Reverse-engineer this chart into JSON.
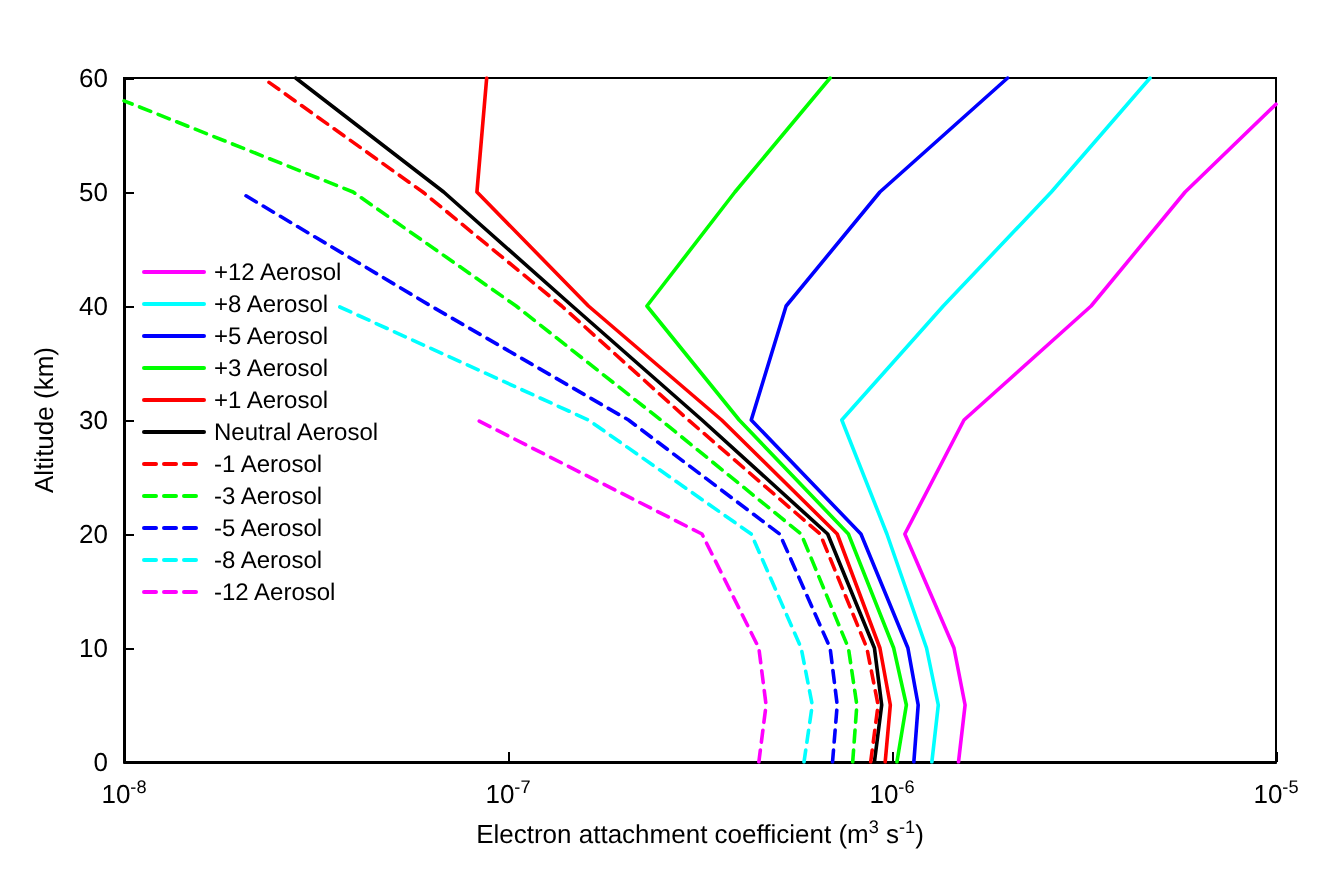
{
  "chart_data": {
    "type": "line",
    "xlabel": "Electron attachment coefficient (m$^{3}$ s$^{-1}$)",
    "ylabel": "Altitude (km)",
    "log": "x",
    "xlim": [
      1e-08,
      1e-05
    ],
    "xticks": [
      {
        "value": 1e-08,
        "label": "10$^{-8}$"
      },
      {
        "value": 1e-07,
        "label": "10$^{-7}$"
      },
      {
        "value": 1e-06,
        "label": "10$^{-6}$"
      },
      {
        "value": 1e-05,
        "label": "10$^{-5}$"
      }
    ],
    "ylim": [
      0,
      60
    ],
    "yticks": [
      0,
      10,
      20,
      30,
      40,
      50,
      60
    ],
    "grid": false,
    "legend": "left",
    "marker": "none",
    "series": [
      {
        "name": "+12 Aerosol",
        "color": "#ff00ff",
        "line_style": "solid",
        "x": [
          1.49e-06,
          1.55e-06,
          1.45e-06,
          1.08e-06,
          1.54e-06,
          3.3e-06,
          5.8e-06,
          1e-05
        ],
        "values": [
          0,
          5,
          10,
          20,
          30,
          40,
          50,
          57.7
        ]
      },
      {
        "name": "+8 Aerosol",
        "color": "#00ffff",
        "line_style": "solid",
        "x": [
          1.27e-06,
          1.32e-06,
          1.23e-06,
          9.7e-07,
          7.4e-07,
          1.36e-06,
          2.6e-06,
          4.7e-06
        ],
        "values": [
          0,
          5,
          10,
          20,
          30,
          40,
          50,
          60
        ]
      },
      {
        "name": "+5 Aerosol",
        "color": "#0000ff",
        "line_style": "solid",
        "x": [
          1.14e-06,
          1.17e-06,
          1.1e-06,
          8.3e-07,
          4.3e-07,
          5.3e-07,
          9.3e-07,
          2e-06
        ],
        "values": [
          0,
          5,
          10,
          20,
          30,
          40,
          50,
          60
        ]
      },
      {
        "name": "+3 Aerosol",
        "color": "#00ff00",
        "line_style": "solid",
        "x": [
          1.03e-06,
          1.09e-06,
          1.01e-06,
          7.7e-07,
          4e-07,
          2.3e-07,
          3.9e-07,
          6.9e-07
        ],
        "values": [
          0,
          5,
          10,
          20,
          30,
          40,
          50,
          60
        ]
      },
      {
        "name": "+1 Aerosol",
        "color": "#ff0000",
        "line_style": "solid",
        "x": [
          9.6e-07,
          9.9e-07,
          9.3e-07,
          7.2e-07,
          3.6e-07,
          1.62e-07,
          8.3e-08,
          8.8e-08
        ],
        "values": [
          0,
          5,
          10,
          20,
          30,
          40,
          50,
          60
        ]
      },
      {
        "name": "Neutral Aerosol",
        "color": "#000000",
        "line_style": "solid",
        "x": [
          9e-07,
          9.4e-07,
          9e-07,
          6.8e-07,
          3.2e-07,
          1.47e-07,
          6.8e-08,
          2.8e-08
        ],
        "values": [
          0,
          5,
          10,
          20,
          30,
          40,
          50,
          60
        ]
      },
      {
        "name": "-1 Aerosol",
        "color": "#ff0000",
        "line_style": "dashed",
        "x": [
          8.8e-07,
          9.2e-07,
          8.6e-07,
          6.5e-07,
          2.95e-07,
          1.38e-07,
          6e-08,
          2.3e-08
        ],
        "values": [
          0,
          5,
          10,
          20,
          30,
          40,
          50,
          60
        ]
      },
      {
        "name": "-3 Aerosol",
        "color": "#00ff00",
        "line_style": "dashed",
        "x": [
          7.9e-07,
          8.1e-07,
          7.7e-07,
          5.8e-07,
          2.5e-07,
          1.05e-07,
          3.95e-08,
          1e-08
        ],
        "values": [
          0,
          5,
          10,
          20,
          30,
          40,
          50,
          58
        ]
      },
      {
        "name": "-5 Aerosol",
        "color": "#0000ff",
        "line_style": "dashed",
        "x": [
          7e-07,
          7.2e-07,
          6.9e-07,
          5.1e-07,
          2.06e-07,
          6.3e-08,
          2e-08
        ],
        "values": [
          0,
          5,
          10,
          20,
          30,
          40,
          50
        ]
      },
      {
        "name": "-8 Aerosol",
        "color": "#00ffff",
        "line_style": "dashed",
        "x": [
          5.9e-07,
          6.2e-07,
          5.8e-07,
          4.3e-07,
          1.62e-07,
          3.6e-08
        ],
        "values": [
          0,
          5,
          10,
          20,
          30,
          40
        ]
      },
      {
        "name": "-12 Aerosol",
        "color": "#ff00ff",
        "line_style": "dashed",
        "x": [
          4.5e-07,
          4.7e-07,
          4.5e-07,
          3.2e-07,
          8.3e-08
        ],
        "values": [
          0,
          5,
          10,
          20,
          30
        ]
      }
    ]
  }
}
